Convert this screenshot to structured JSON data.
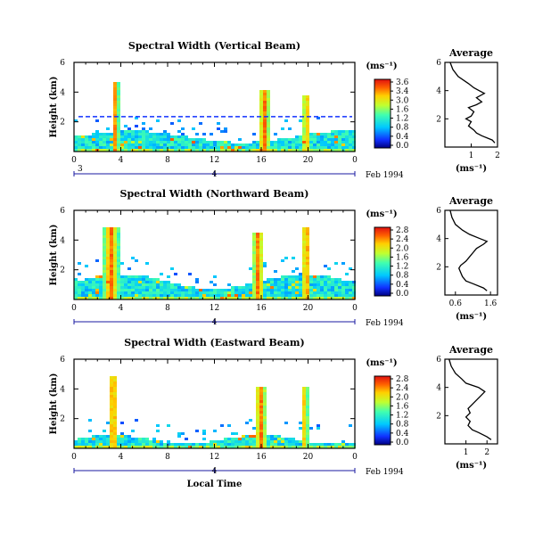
{
  "chart_data": [
    {
      "type": "heatmap",
      "title": "Spectral Width (Vertical Beam)",
      "ylabel": "Height (km)",
      "x_ticks": [
        "0",
        "4",
        "8",
        "12",
        "16",
        "20",
        "0"
      ],
      "y_ticks": [
        "6",
        "4",
        "2"
      ],
      "xlim": [
        0,
        24
      ],
      "ylim": [
        0,
        6
      ],
      "date_label": "Feb 1994",
      "day_start": "3",
      "day_end": "4",
      "colorbar": {
        "unit": "(ms⁻¹)",
        "ticks": [
          "3.6",
          "3.4",
          "3.0",
          "1.6",
          "1.2",
          "0.8",
          "0.4",
          "0.0"
        ],
        "range": [
          0,
          3.6
        ]
      },
      "average": {
        "title": "Average",
        "xlabel": "(ms⁻¹)",
        "x_ticks": [
          "1",
          "2"
        ],
        "xlim": [
          0,
          2
        ],
        "heights": [
          0.3,
          0.5,
          0.8,
          1.0,
          1.2,
          1.5,
          1.8,
          2.0,
          2.2,
          2.5,
          2.8,
          3.0,
          3.2,
          3.5,
          3.8,
          4.0,
          4.2,
          4.5,
          5.0,
          5.5,
          6.0
        ],
        "values": [
          1.9,
          1.8,
          1.4,
          1.2,
          1.1,
          0.9,
          1.0,
          0.8,
          1.0,
          1.1,
          0.9,
          1.2,
          1.4,
          1.2,
          1.5,
          1.3,
          1.1,
          0.9,
          0.5,
          0.3,
          0.2
        ]
      }
    },
    {
      "type": "heatmap",
      "title": "Spectral Width (Northward Beam)",
      "ylabel": "Height (km)",
      "x_ticks": [
        "0",
        "4",
        "8",
        "12",
        "16",
        "20",
        "0"
      ],
      "y_ticks": [
        "6",
        "4",
        "2"
      ],
      "xlim": [
        0,
        24
      ],
      "ylim": [
        0,
        6
      ],
      "date_label": "Feb 1994",
      "day_start": "",
      "day_end": "4",
      "colorbar": {
        "unit": "(ms⁻¹)",
        "ticks": [
          "2.8",
          "2.4",
          "2.0",
          "1.6",
          "1.2",
          "0.8",
          "0.4",
          "0.0"
        ],
        "range": [
          0,
          2.8
        ]
      },
      "average": {
        "title": "Average",
        "xlabel": "(ms⁻¹)",
        "x_ticks": [
          "0.6",
          "1.6"
        ],
        "xlim": [
          0.3,
          1.8
        ],
        "heights": [
          0.3,
          0.5,
          0.8,
          1.0,
          1.3,
          1.6,
          1.9,
          2.1,
          2.4,
          2.7,
          3.0,
          3.3,
          3.6,
          3.8,
          4.0,
          4.3,
          4.6,
          5.0,
          5.5,
          6.0
        ],
        "values": [
          1.5,
          1.4,
          1.1,
          0.9,
          0.8,
          0.75,
          0.7,
          0.75,
          0.9,
          1.0,
          1.1,
          1.2,
          1.4,
          1.5,
          1.3,
          1.0,
          0.8,
          0.6,
          0.5,
          0.45
        ]
      }
    },
    {
      "type": "heatmap",
      "title": "Spectral Width (Eastward Beam)",
      "ylabel": "Height (km)",
      "xlabel": "Local Time",
      "x_ticks": [
        "0",
        "4",
        "8",
        "12",
        "16",
        "20",
        "0"
      ],
      "y_ticks": [
        "6",
        "4",
        "2"
      ],
      "xlim": [
        0,
        24
      ],
      "ylim": [
        0,
        6
      ],
      "date_label": "Feb 1994",
      "day_start": "",
      "day_end": "4",
      "colorbar": {
        "unit": "(ms⁻¹)",
        "ticks": [
          "2.8",
          "2.4",
          "2.0",
          "1.6",
          "1.2",
          "0.8",
          "0.4",
          "0.0"
        ],
        "range": [
          0,
          2.8
        ]
      },
      "average": {
        "title": "Average",
        "xlabel": "(ms⁻¹)",
        "x_ticks": [
          "1",
          "2"
        ],
        "xlim": [
          0,
          2.5
        ],
        "heights": [
          0.3,
          0.5,
          0.8,
          1.0,
          1.3,
          1.6,
          1.9,
          2.2,
          2.5,
          2.8,
          3.1,
          3.4,
          3.7,
          4.0,
          4.3,
          4.6,
          5.0,
          5.5,
          6.0
        ],
        "values": [
          2.2,
          2.0,
          1.6,
          1.3,
          1.1,
          1.2,
          1.0,
          1.2,
          1.1,
          1.3,
          1.5,
          1.7,
          1.9,
          1.6,
          1.0,
          0.8,
          0.5,
          0.3,
          0.2
        ]
      }
    }
  ]
}
